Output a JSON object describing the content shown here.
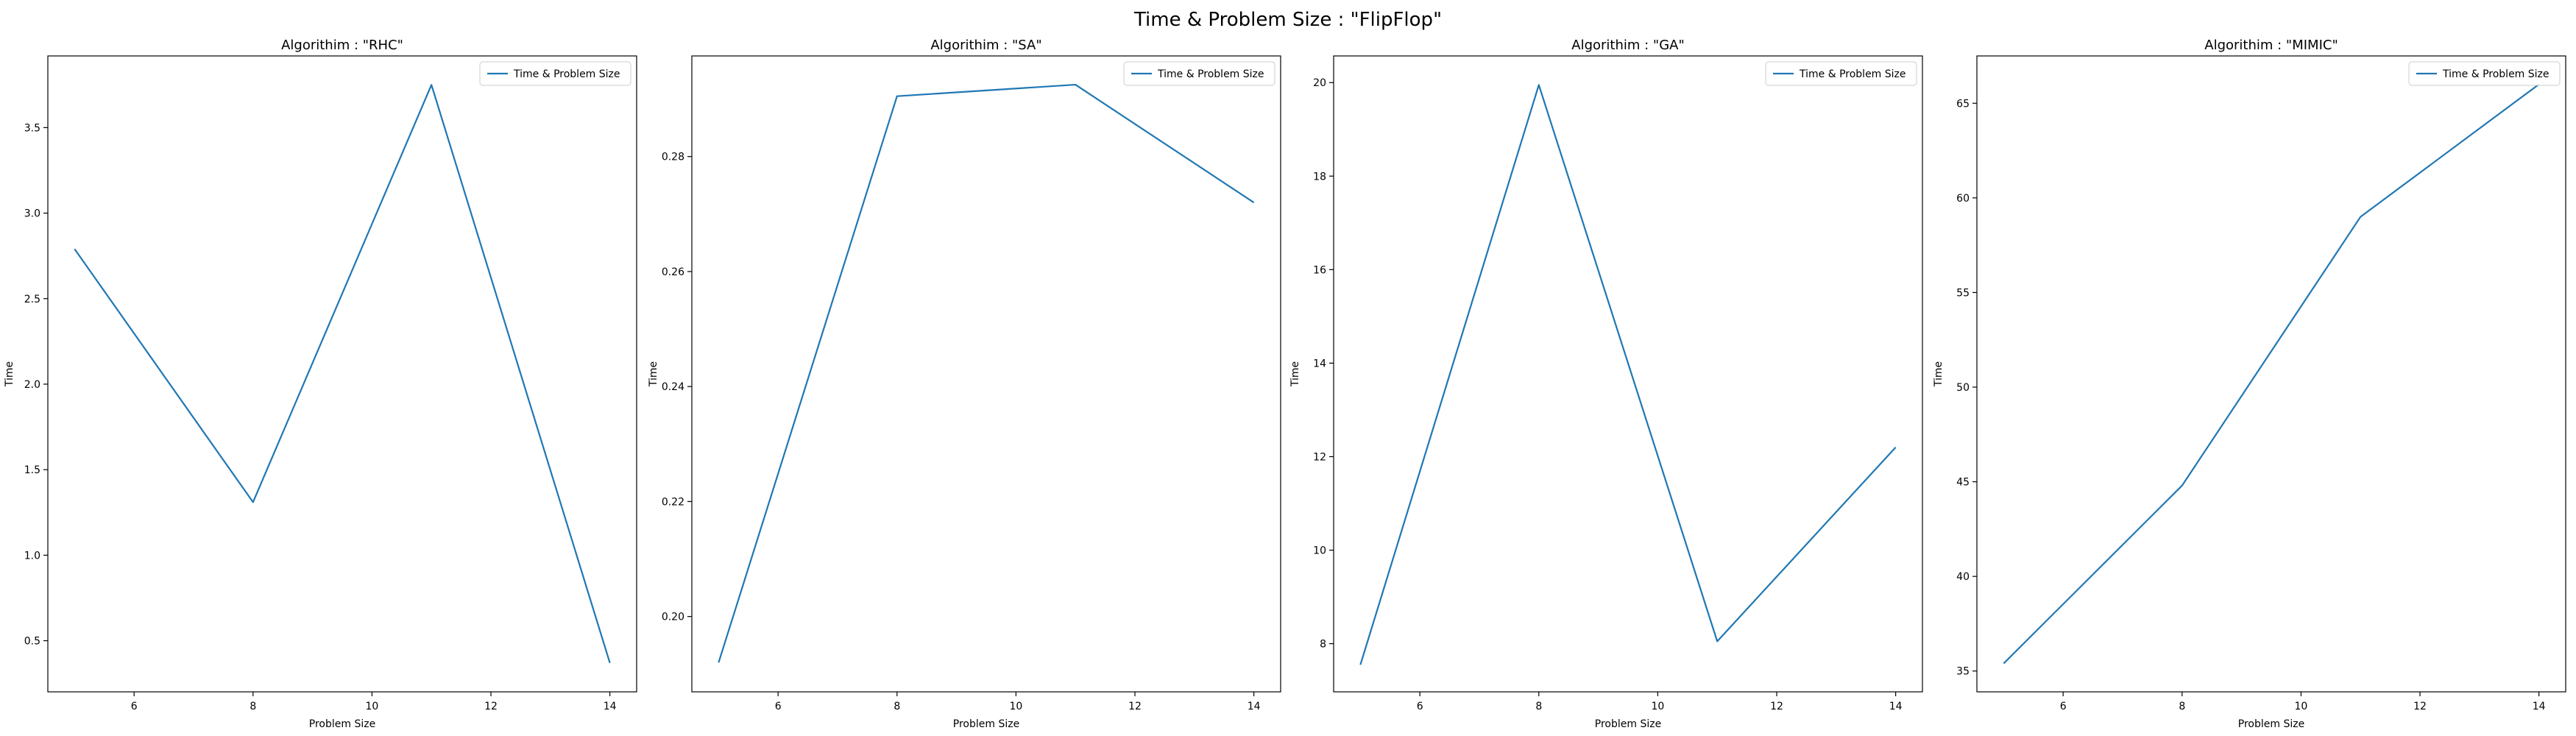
{
  "figure": {
    "suptitle": "Time & Problem Size : \"FlipFlop\"",
    "line_color": "#1f77b4"
  },
  "chart_data": [
    {
      "type": "line",
      "title": "Algorithim : \"RHC\"",
      "xlabel": "Problem Size",
      "ylabel": "Time",
      "legend": "upper-right",
      "grid": false,
      "x": [
        5,
        8,
        11,
        14
      ],
      "series": [
        {
          "name": "Time & Problem Size",
          "values": [
            2.79,
            1.31,
            3.75,
            0.37
          ]
        }
      ],
      "xlim": [
        4.55,
        14.45
      ],
      "ylim": [
        0.201,
        3.919
      ],
      "xticks": [
        6,
        8,
        10,
        12,
        14
      ],
      "yticks": [
        0.5,
        1.0,
        1.5,
        2.0,
        2.5,
        3.0,
        3.5
      ],
      "xtick_labels": [
        "6",
        "8",
        "10",
        "12",
        "14"
      ],
      "ytick_labels": [
        "0.5",
        "1.0",
        "1.5",
        "2.0",
        "2.5",
        "3.0",
        "3.5"
      ]
    },
    {
      "type": "line",
      "title": "Algorithim : \"SA\"",
      "xlabel": "Problem Size",
      "ylabel": "Time",
      "legend": "upper-right",
      "grid": false,
      "x": [
        5,
        8,
        11,
        14
      ],
      "series": [
        {
          "name": "Time & Problem Size",
          "values": [
            0.192,
            0.2905,
            0.2925,
            0.272
          ]
        }
      ],
      "xlim": [
        4.55,
        14.45
      ],
      "ylim": [
        0.1869,
        0.2975
      ],
      "xticks": [
        6,
        8,
        10,
        12,
        14
      ],
      "yticks": [
        0.2,
        0.22,
        0.24,
        0.26,
        0.28
      ],
      "xtick_labels": [
        "6",
        "8",
        "10",
        "12",
        "14"
      ],
      "ytick_labels": [
        "0.20",
        "0.22",
        "0.24",
        "0.26",
        "0.28"
      ]
    },
    {
      "type": "line",
      "title": "Algorithim : \"GA\"",
      "xlabel": "Problem Size",
      "ylabel": "Time",
      "legend": "upper-right",
      "grid": false,
      "x": [
        5,
        8,
        11,
        14
      ],
      "series": [
        {
          "name": "Time & Problem Size",
          "values": [
            7.55,
            19.95,
            8.05,
            12.2
          ]
        }
      ],
      "xlim": [
        4.55,
        14.45
      ],
      "ylim": [
        6.97,
        20.57
      ],
      "xticks": [
        6,
        8,
        10,
        12,
        14
      ],
      "yticks": [
        8,
        10,
        12,
        14,
        16,
        18,
        20
      ],
      "xtick_labels": [
        "6",
        "8",
        "10",
        "12",
        "14"
      ],
      "ytick_labels": [
        "8",
        "10",
        "12",
        "14",
        "16",
        "18",
        "20"
      ]
    },
    {
      "type": "line",
      "title": "Algorithim : \"MIMIC\"",
      "xlabel": "Problem Size",
      "ylabel": "Time",
      "legend": "upper-right",
      "grid": false,
      "x": [
        5,
        8,
        11,
        14
      ],
      "series": [
        {
          "name": "Time & Problem Size",
          "values": [
            35.4,
            44.8,
            59.0,
            66.0
          ]
        }
      ],
      "xlim": [
        4.55,
        14.45
      ],
      "ylim": [
        33.9,
        67.5
      ],
      "xticks": [
        6,
        8,
        10,
        12,
        14
      ],
      "yticks": [
        35,
        40,
        45,
        50,
        55,
        60,
        65
      ],
      "xtick_labels": [
        "6",
        "8",
        "10",
        "12",
        "14"
      ],
      "ytick_labels": [
        "35",
        "40",
        "45",
        "50",
        "55",
        "60",
        "65"
      ]
    }
  ]
}
